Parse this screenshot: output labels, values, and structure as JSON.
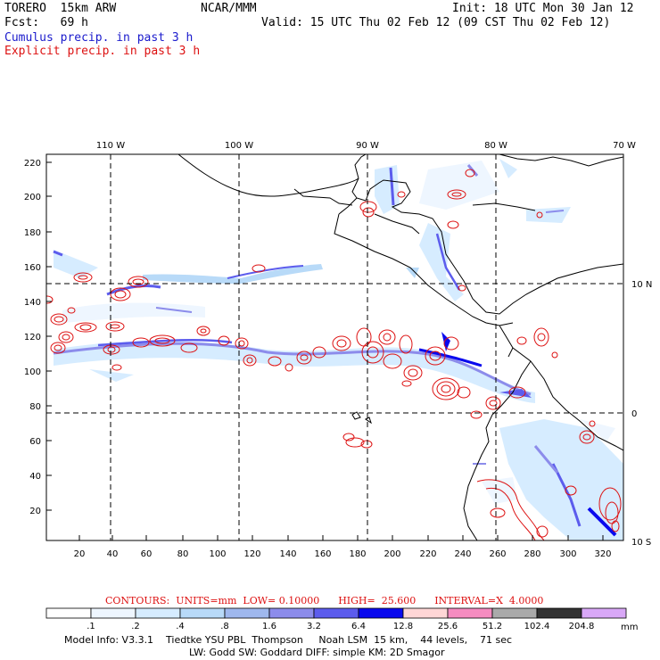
{
  "header": {
    "model": "TORERO  15km ARW",
    "org": "NCAR/MMM",
    "init": "Init: 18 UTC Mon 30 Jan 12",
    "fcst": "Fcst:   69 h",
    "valid": "Valid: 15 UTC Thu 02 Feb 12 (09 CST Thu 02 Feb 12)",
    "cumulus": "Cumulus precip. in past 3 h",
    "explicit": "Explicit precip. in past 3 h"
  },
  "colors": {
    "cumulus_text": "#1a1acc",
    "explicit_text": "#dd1111",
    "contour": "#dd1111",
    "coast": "#000000"
  },
  "map": {
    "lon_labels": [
      "110 W",
      "100 W",
      "90 W",
      "80 W",
      "70 W"
    ],
    "lat_labels": [
      "10 N",
      "0",
      "10 S"
    ],
    "y_ticks": [
      "220",
      "200",
      "180",
      "160",
      "140",
      "120",
      "100",
      "80",
      "60",
      "40",
      "20"
    ],
    "x_ticks": [
      "20",
      "40",
      "60",
      "80",
      "100",
      "120",
      "140",
      "160",
      "180",
      "200",
      "220",
      "240",
      "260",
      "280",
      "300",
      "320"
    ]
  },
  "contours": {
    "text": "CONTOURS:  UNITS=mm  LOW= 0.10000      HIGH=  25.600      INTERVAL=X  4.0000"
  },
  "colorbar": {
    "labels": [
      ".1",
      ".2",
      ".4",
      ".8",
      "1.6",
      "3.2",
      "6.4",
      "12.8",
      "25.6",
      "51.2",
      "102.4",
      "204.8"
    ],
    "unit": "mm",
    "colors": [
      "#ffffff",
      "#eef6ff",
      "#d6ecff",
      "#b8daf8",
      "#9fb8ee",
      "#8c8ceb",
      "#5c5ced",
      "#0a0aee",
      "#ffd6d6",
      "#f58cc0",
      "#aaaaaa",
      "#333333",
      "#d9a8f7"
    ]
  },
  "model_info": {
    "line1": "Model Info: V3.3.1    Tiedtke YSU PBL  Thompson     Noah LSM  15 km,    44 levels,    71 sec",
    "line2": "LW: Godd SW: Goddard DIFF: simple KM: 2D Smagor"
  }
}
